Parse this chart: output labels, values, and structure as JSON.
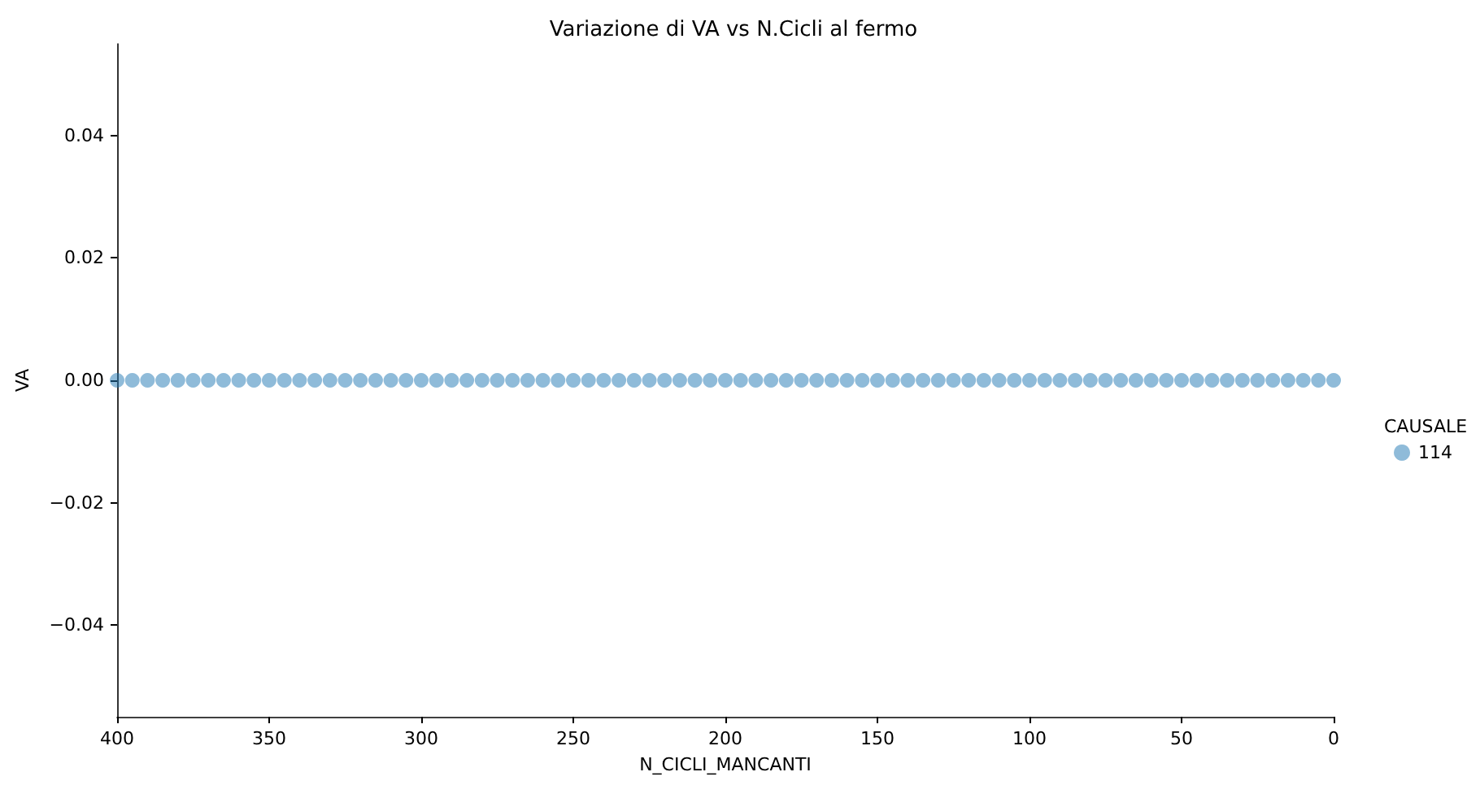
{
  "chart_data": {
    "type": "scatter",
    "title": "Variazione di VA vs N.Cicli al fermo",
    "xlabel": "N_CICLI_MANCANTI",
    "ylabel": "VA",
    "legend_title": "CAUSALE",
    "xlim": [
      400,
      0
    ],
    "xticks": [
      400,
      350,
      300,
      250,
      200,
      150,
      100,
      50,
      0
    ],
    "ylim": [
      -0.055,
      0.055
    ],
    "yticks": [
      {
        "value": -0.04,
        "label": "−0.04"
      },
      {
        "value": -0.02,
        "label": "−0.02"
      },
      {
        "value": 0,
        "label": "0.00"
      },
      {
        "value": 0.02,
        "label": "0.02"
      },
      {
        "value": 0.04,
        "label": "0.04"
      }
    ],
    "x": [
      400,
      395,
      390,
      385,
      380,
      375,
      370,
      365,
      360,
      355,
      350,
      345,
      340,
      335,
      330,
      325,
      320,
      315,
      310,
      305,
      300,
      295,
      290,
      285,
      280,
      275,
      270,
      265,
      260,
      255,
      250,
      245,
      240,
      235,
      230,
      225,
      220,
      215,
      210,
      205,
      200,
      195,
      190,
      185,
      180,
      175,
      170,
      165,
      160,
      155,
      150,
      145,
      140,
      135,
      130,
      125,
      120,
      115,
      110,
      105,
      100,
      95,
      90,
      85,
      80,
      75,
      70,
      65,
      60,
      55,
      50,
      45,
      40,
      35,
      30,
      25,
      20,
      15,
      10,
      5,
      0
    ],
    "series": [
      {
        "name": "114",
        "color": "#1f77b4",
        "values": [
          0,
          0,
          0,
          0,
          0,
          0,
          0,
          0,
          0,
          0,
          0,
          0,
          0,
          0,
          0,
          0,
          0,
          0,
          0,
          0,
          0,
          0,
          0,
          0,
          0,
          0,
          0,
          0,
          0,
          0,
          0,
          0,
          0,
          0,
          0,
          0,
          0,
          0,
          0,
          0,
          0,
          0,
          0,
          0,
          0,
          0,
          0,
          0,
          0,
          0,
          0,
          0,
          0,
          0,
          0,
          0,
          0,
          0,
          0,
          0,
          0,
          0,
          0,
          0,
          0,
          0,
          0,
          0,
          0,
          0,
          0,
          0,
          0,
          0,
          0,
          0,
          0,
          0,
          0,
          0,
          0
        ]
      }
    ],
    "marker": "circle",
    "grid": false,
    "legend": "right"
  }
}
